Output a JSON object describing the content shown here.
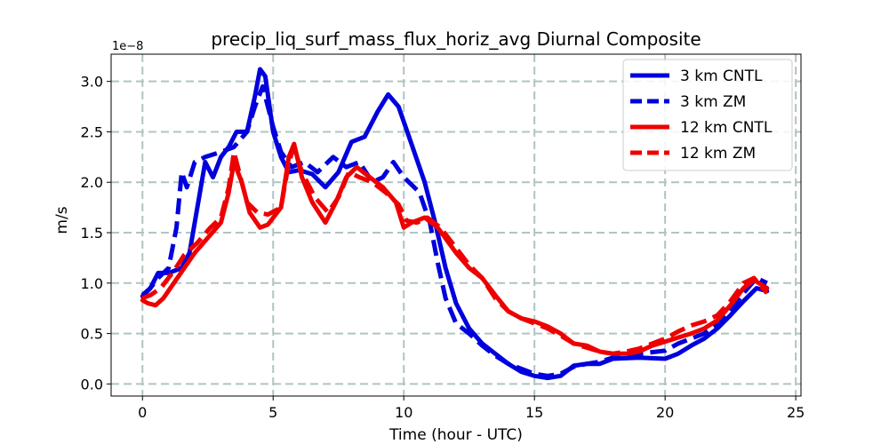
{
  "chart_data": {
    "type": "line",
    "title": "precip_liq_surf_mass_flux_horiz_avg Diurnal Composite",
    "xlabel": "Time (hour - UTC)",
    "ylabel": "m/s",
    "y_offset_label": "1e−8",
    "xlim": [
      -1.2,
      25.2
    ],
    "ylim": [
      -0.12,
      3.27
    ],
    "xticks": [
      0,
      5,
      10,
      15,
      20,
      25
    ],
    "yticks": [
      0.0,
      0.5,
      1.0,
      1.5,
      2.0,
      2.5,
      3.0
    ],
    "ytick_labels": [
      "0.0",
      "0.5",
      "1.0",
      "1.5",
      "2.0",
      "2.5",
      "3.0"
    ],
    "grid": true,
    "legend_position": "top-right",
    "series": [
      {
        "name": "3 km CNTL",
        "color": "#0000dd",
        "dash": "solid",
        "points": [
          [
            0,
            0.87
          ],
          [
            0.3,
            0.95
          ],
          [
            0.6,
            1.1
          ],
          [
            1,
            1.1
          ],
          [
            1.5,
            1.15
          ],
          [
            1.8,
            1.3
          ],
          [
            2.1,
            1.75
          ],
          [
            2.4,
            2.2
          ],
          [
            2.7,
            2.05
          ],
          [
            3,
            2.25
          ],
          [
            3.3,
            2.35
          ],
          [
            3.6,
            2.5
          ],
          [
            4,
            2.5
          ],
          [
            4.3,
            2.85
          ],
          [
            4.5,
            3.12
          ],
          [
            4.7,
            3.05
          ],
          [
            5,
            2.5
          ],
          [
            5.3,
            2.25
          ],
          [
            5.6,
            2.1
          ],
          [
            6,
            2.12
          ],
          [
            6.5,
            2.08
          ],
          [
            7,
            1.95
          ],
          [
            7.5,
            2.1
          ],
          [
            8,
            2.4
          ],
          [
            8.5,
            2.45
          ],
          [
            9,
            2.7
          ],
          [
            9.4,
            2.87
          ],
          [
            9.8,
            2.75
          ],
          [
            10.2,
            2.45
          ],
          [
            10.8,
            2.0
          ],
          [
            11.2,
            1.6
          ],
          [
            11.6,
            1.15
          ],
          [
            12,
            0.8
          ],
          [
            12.5,
            0.55
          ],
          [
            13,
            0.4
          ],
          [
            13.5,
            0.3
          ],
          [
            14,
            0.2
          ],
          [
            14.5,
            0.12
          ],
          [
            15,
            0.08
          ],
          [
            15.5,
            0.06
          ],
          [
            16,
            0.08
          ],
          [
            16.5,
            0.18
          ],
          [
            17,
            0.2
          ],
          [
            17.5,
            0.2
          ],
          [
            18,
            0.25
          ],
          [
            19,
            0.26
          ],
          [
            20,
            0.25
          ],
          [
            20.5,
            0.3
          ],
          [
            21,
            0.38
          ],
          [
            21.5,
            0.45
          ],
          [
            22,
            0.55
          ],
          [
            22.5,
            0.68
          ],
          [
            23,
            0.82
          ],
          [
            23.5,
            0.95
          ],
          [
            23.9,
            0.92
          ]
        ]
      },
      {
        "name": "3 km ZM",
        "color": "#0000dd",
        "dash": "dashed",
        "points": [
          [
            0,
            0.88
          ],
          [
            0.3,
            0.95
          ],
          [
            0.6,
            1.05
          ],
          [
            1,
            1.15
          ],
          [
            1.3,
            1.55
          ],
          [
            1.5,
            2.1
          ],
          [
            1.7,
            1.95
          ],
          [
            2,
            2.2
          ],
          [
            2.4,
            2.25
          ],
          [
            3,
            2.3
          ],
          [
            3.5,
            2.35
          ],
          [
            4,
            2.5
          ],
          [
            4.3,
            2.75
          ],
          [
            4.6,
            2.95
          ],
          [
            5,
            2.55
          ],
          [
            5.3,
            2.3
          ],
          [
            5.7,
            2.15
          ],
          [
            6.2,
            2.2
          ],
          [
            6.7,
            2.1
          ],
          [
            7.3,
            2.25
          ],
          [
            7.8,
            2.15
          ],
          [
            8.3,
            2.2
          ],
          [
            8.8,
            2.0
          ],
          [
            9.2,
            2.05
          ],
          [
            9.6,
            2.2
          ],
          [
            10,
            2.05
          ],
          [
            10.6,
            1.9
          ],
          [
            11,
            1.6
          ],
          [
            11.3,
            1.2
          ],
          [
            11.6,
            0.85
          ],
          [
            12,
            0.6
          ],
          [
            12.5,
            0.5
          ],
          [
            13,
            0.38
          ],
          [
            13.5,
            0.28
          ],
          [
            14,
            0.2
          ],
          [
            14.5,
            0.15
          ],
          [
            15,
            0.1
          ],
          [
            15.5,
            0.08
          ],
          [
            16,
            0.1
          ],
          [
            16.5,
            0.17
          ],
          [
            17,
            0.2
          ],
          [
            17.5,
            0.22
          ],
          [
            18,
            0.26
          ],
          [
            19,
            0.3
          ],
          [
            20,
            0.33
          ],
          [
            20.5,
            0.4
          ],
          [
            21,
            0.45
          ],
          [
            21.5,
            0.5
          ],
          [
            22,
            0.6
          ],
          [
            22.5,
            0.72
          ],
          [
            23,
            0.9
          ],
          [
            23.5,
            1.05
          ],
          [
            23.9,
            1.0
          ]
        ]
      },
      {
        "name": "12 km CNTL",
        "color": "#ee0000",
        "dash": "solid",
        "points": [
          [
            0,
            0.83
          ],
          [
            0.2,
            0.8
          ],
          [
            0.5,
            0.78
          ],
          [
            0.8,
            0.85
          ],
          [
            1.2,
            1.0
          ],
          [
            1.6,
            1.15
          ],
          [
            2,
            1.3
          ],
          [
            2.5,
            1.45
          ],
          [
            3,
            1.6
          ],
          [
            3.3,
            1.9
          ],
          [
            3.5,
            2.2
          ],
          [
            3.8,
            2.0
          ],
          [
            4.1,
            1.7
          ],
          [
            4.5,
            1.55
          ],
          [
            4.8,
            1.58
          ],
          [
            5.3,
            1.75
          ],
          [
            5.6,
            2.25
          ],
          [
            5.8,
            2.38
          ],
          [
            6.1,
            2.05
          ],
          [
            6.5,
            1.8
          ],
          [
            7,
            1.6
          ],
          [
            7.4,
            1.8
          ],
          [
            7.8,
            2.05
          ],
          [
            8.2,
            2.15
          ],
          [
            8.7,
            2.05
          ],
          [
            9.2,
            1.95
          ],
          [
            9.7,
            1.8
          ],
          [
            10,
            1.55
          ],
          [
            10.3,
            1.6
          ],
          [
            10.8,
            1.65
          ],
          [
            11.3,
            1.55
          ],
          [
            12,
            1.3
          ],
          [
            12.5,
            1.15
          ],
          [
            13,
            1.05
          ],
          [
            13.5,
            0.88
          ],
          [
            14,
            0.72
          ],
          [
            14.5,
            0.65
          ],
          [
            15,
            0.62
          ],
          [
            15.5,
            0.57
          ],
          [
            16,
            0.5
          ],
          [
            16.5,
            0.4
          ],
          [
            17,
            0.38
          ],
          [
            17.5,
            0.32
          ],
          [
            18,
            0.3
          ],
          [
            18.5,
            0.3
          ],
          [
            19,
            0.32
          ],
          [
            19.5,
            0.38
          ],
          [
            20,
            0.42
          ],
          [
            20.5,
            0.46
          ],
          [
            21,
            0.5
          ],
          [
            21.5,
            0.55
          ],
          [
            22,
            0.63
          ],
          [
            22.5,
            0.78
          ],
          [
            23,
            0.95
          ],
          [
            23.4,
            1.03
          ],
          [
            23.9,
            0.95
          ]
        ]
      },
      {
        "name": "12 km ZM",
        "color": "#ee0000",
        "dash": "dashed",
        "points": [
          [
            0,
            0.85
          ],
          [
            0.3,
            0.88
          ],
          [
            0.7,
            0.95
          ],
          [
            1.2,
            1.12
          ],
          [
            1.6,
            1.28
          ],
          [
            2.1,
            1.4
          ],
          [
            2.6,
            1.55
          ],
          [
            3,
            1.65
          ],
          [
            3.3,
            1.95
          ],
          [
            3.5,
            2.3
          ],
          [
            3.7,
            2.1
          ],
          [
            4,
            1.8
          ],
          [
            4.4,
            1.7
          ],
          [
            4.8,
            1.68
          ],
          [
            5.3,
            1.75
          ],
          [
            5.6,
            2.2
          ],
          [
            5.8,
            2.35
          ],
          [
            6.1,
            2.1
          ],
          [
            6.6,
            1.85
          ],
          [
            7.1,
            1.7
          ],
          [
            7.5,
            1.85
          ],
          [
            7.9,
            2.1
          ],
          [
            8.3,
            2.05
          ],
          [
            8.8,
            2.0
          ],
          [
            9.3,
            1.9
          ],
          [
            9.8,
            1.78
          ],
          [
            10.1,
            1.62
          ],
          [
            10.5,
            1.6
          ],
          [
            10.9,
            1.65
          ],
          [
            11.4,
            1.55
          ],
          [
            12,
            1.35
          ],
          [
            12.5,
            1.18
          ],
          [
            13,
            1.05
          ],
          [
            13.5,
            0.85
          ],
          [
            14,
            0.72
          ],
          [
            14.5,
            0.65
          ],
          [
            15,
            0.6
          ],
          [
            15.5,
            0.55
          ],
          [
            16,
            0.48
          ],
          [
            16.5,
            0.4
          ],
          [
            17,
            0.36
          ],
          [
            17.5,
            0.32
          ],
          [
            18,
            0.3
          ],
          [
            18.5,
            0.32
          ],
          [
            19,
            0.35
          ],
          [
            19.5,
            0.4
          ],
          [
            20,
            0.45
          ],
          [
            20.5,
            0.52
          ],
          [
            21,
            0.58
          ],
          [
            21.5,
            0.62
          ],
          [
            22,
            0.68
          ],
          [
            22.5,
            0.82
          ],
          [
            23,
            1.0
          ],
          [
            23.4,
            1.05
          ],
          [
            23.9,
            0.9
          ]
        ]
      }
    ]
  }
}
